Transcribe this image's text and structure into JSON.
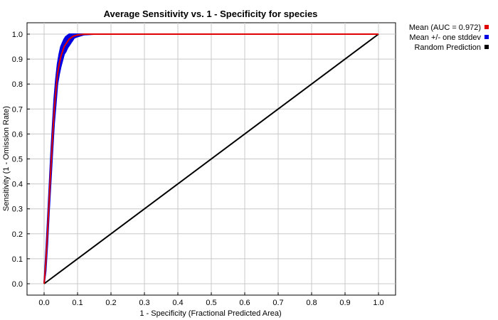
{
  "chart_data": {
    "type": "line",
    "title": "Average Sensitivity vs. 1 - Specificity for species",
    "xlabel": "1 - Specificity (Fractional Predicted Area)",
    "ylabel": "Sensitivity (1 - Omission Rate)",
    "xlim": [
      0.0,
      1.0
    ],
    "ylim": [
      0.0,
      1.0
    ],
    "x_ticks": [
      "0.0",
      "0.1",
      "0.2",
      "0.3",
      "0.4",
      "0.5",
      "0.6",
      "0.7",
      "0.8",
      "0.9",
      "1.0"
    ],
    "y_ticks": [
      "0.0",
      "0.1",
      "0.2",
      "0.3",
      "0.4",
      "0.5",
      "0.6",
      "0.7",
      "0.8",
      "0.9",
      "1.0"
    ],
    "grid": true,
    "legend_position": "top-right, outside plot",
    "series": [
      {
        "name": "Mean (AUC = 0.972)",
        "color": "#e00000",
        "style": "line",
        "x": [
          0.0,
          0.005,
          0.01,
          0.015,
          0.02,
          0.025,
          0.03,
          0.035,
          0.04,
          0.045,
          0.05,
          0.055,
          0.06,
          0.065,
          0.07,
          0.075,
          0.08,
          0.085,
          0.09,
          0.1,
          0.12,
          0.15,
          1.0
        ],
        "y": [
          0.0,
          0.08,
          0.2,
          0.33,
          0.46,
          0.58,
          0.69,
          0.77,
          0.84,
          0.88,
          0.91,
          0.93,
          0.95,
          0.96,
          0.97,
          0.98,
          0.985,
          0.99,
          0.993,
          0.997,
          1.0,
          1.0,
          1.0
        ]
      },
      {
        "name": "Mean +/- one stddev",
        "color": "#0000e0",
        "style": "band",
        "x": [
          0.0,
          0.005,
          0.01,
          0.015,
          0.02,
          0.025,
          0.03,
          0.035,
          0.04,
          0.045,
          0.05,
          0.055,
          0.06,
          0.065,
          0.07,
          0.075,
          0.08,
          0.085,
          0.09,
          0.1,
          0.12,
          0.15,
          1.0
        ],
        "upper": [
          0.0,
          0.11,
          0.24,
          0.37,
          0.51,
          0.63,
          0.74,
          0.82,
          0.88,
          0.92,
          0.95,
          0.965,
          0.98,
          0.99,
          0.995,
          1.0,
          1.0,
          1.0,
          1.0,
          1.0,
          1.0,
          1.0,
          1.0
        ],
        "lower": [
          0.0,
          0.05,
          0.16,
          0.29,
          0.41,
          0.53,
          0.64,
          0.72,
          0.8,
          0.84,
          0.87,
          0.895,
          0.92,
          0.93,
          0.945,
          0.955,
          0.965,
          0.975,
          0.985,
          0.99,
          0.998,
          1.0,
          1.0
        ]
      },
      {
        "name": "Random Prediction",
        "color": "#000000",
        "style": "line",
        "x": [
          0.0,
          1.0
        ],
        "y": [
          0.0,
          1.0
        ]
      }
    ]
  }
}
